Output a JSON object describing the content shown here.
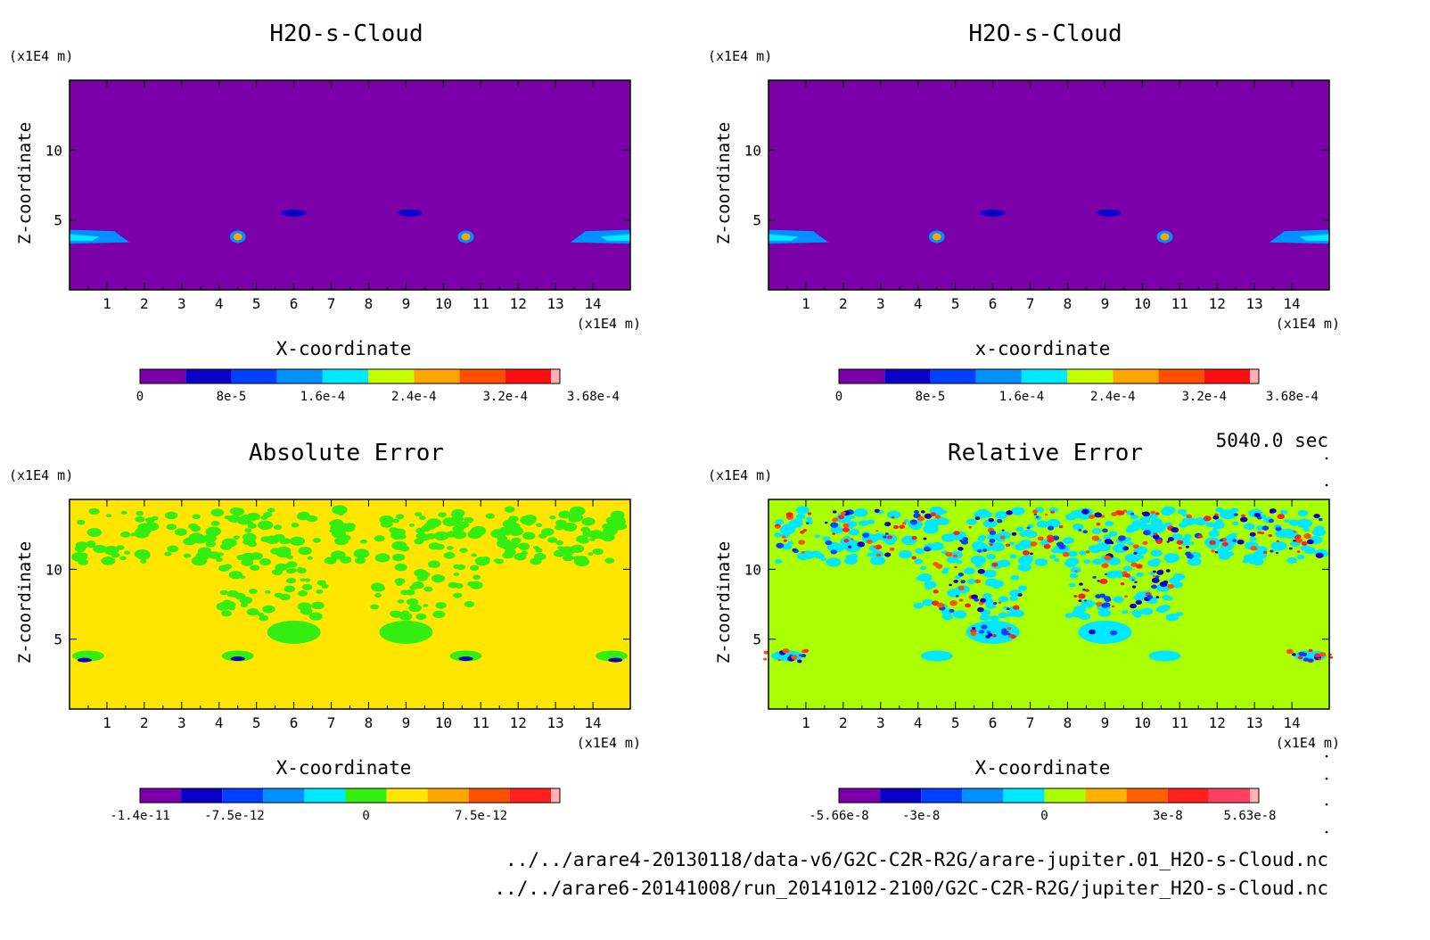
{
  "time_label": "5040.0 sec",
  "footer": {
    "line1": "../../arare4-20130118/data-v6/G2C-C2R-R2G/arare-jupiter.01_H2O-s-Cloud.nc",
    "line2": "../../arare6-20141008/run_20141012-2100/G2C-C2R-R2G/jupiter_H2O-s-Cloud.nc"
  },
  "chart_data": [
    {
      "type": "heatmap",
      "title": "H2O-s-Cloud",
      "xlabel": "X-coordinate",
      "ylabel": "Z-coordinate",
      "x_unit": "(x1E4 m)",
      "y_unit": "(x1E4 m)",
      "xlim": [
        0,
        15
      ],
      "ylim": [
        0,
        15
      ],
      "x_ticks": [
        "1",
        "2",
        "3",
        "4",
        "5",
        "6",
        "7",
        "8",
        "9",
        "10",
        "11",
        "12",
        "13",
        "14"
      ],
      "y_ticks": [
        "5",
        "10"
      ],
      "background": "#7b00aa",
      "colorbar": {
        "colors": [
          "#7b00aa",
          "#0a00c8",
          "#0040ff",
          "#0090ff",
          "#00e8ff",
          "#c8ff00",
          "#ffa500",
          "#ff5000",
          "#ff1010",
          "#ffb0b0"
        ],
        "labels": [
          "0",
          "8e-5",
          "1.6e-4",
          "2.4e-4",
          "3.2e-4",
          "3.68e-4"
        ]
      }
    },
    {
      "type": "heatmap",
      "title": "H2O-s-Cloud",
      "xlabel": "x-coordinate",
      "ylabel": "Z-coordinate",
      "x_unit": "(x1E4 m)",
      "y_unit": "(x1E4 m)",
      "xlim": [
        0,
        15
      ],
      "ylim": [
        0,
        15
      ],
      "x_ticks": [
        "1",
        "2",
        "3",
        "4",
        "5",
        "6",
        "7",
        "8",
        "9",
        "10",
        "11",
        "12",
        "13",
        "14"
      ],
      "y_ticks": [
        "5",
        "10"
      ],
      "background": "#7b00aa",
      "colorbar": {
        "colors": [
          "#7b00aa",
          "#0a00c8",
          "#0040ff",
          "#0090ff",
          "#00e8ff",
          "#c8ff00",
          "#ffa500",
          "#ff5000",
          "#ff1010",
          "#ffb0b0"
        ],
        "labels": [
          "0",
          "8e-5",
          "1.6e-4",
          "2.4e-4",
          "3.2e-4",
          "3.68e-4"
        ]
      }
    },
    {
      "type": "heatmap",
      "title": "Absolute Error",
      "xlabel": "X-coordinate",
      "ylabel": "Z-coordinate",
      "x_unit": "(x1E4 m)",
      "y_unit": "(x1E4 m)",
      "xlim": [
        0,
        15
      ],
      "ylim": [
        0,
        15
      ],
      "x_ticks": [
        "1",
        "2",
        "3",
        "4",
        "5",
        "6",
        "7",
        "8",
        "9",
        "10",
        "11",
        "12",
        "13",
        "14"
      ],
      "y_ticks": [
        "5",
        "10"
      ],
      "background": "#ffe500",
      "colorbar": {
        "colors": [
          "#7b00aa",
          "#0a00c8",
          "#0040ff",
          "#0090ff",
          "#00e8ff",
          "#33ee11",
          "#ffe500",
          "#ffa500",
          "#ff5000",
          "#ff2020",
          "#ffb0b0"
        ],
        "labels": [
          "-1.4e-11",
          "-7.5e-12",
          "0",
          "7.5e-12"
        ]
      }
    },
    {
      "type": "heatmap",
      "title": "Relative Error",
      "xlabel": "X-coordinate",
      "ylabel": "Z-coordinate",
      "x_unit": "(x1E4 m)",
      "y_unit": "(x1E4 m)",
      "xlim": [
        0,
        15
      ],
      "ylim": [
        0,
        15
      ],
      "x_ticks": [
        "1",
        "2",
        "3",
        "4",
        "5",
        "6",
        "7",
        "8",
        "9",
        "10",
        "11",
        "12",
        "13",
        "14"
      ],
      "y_ticks": [
        "5",
        "10"
      ],
      "background": "#aaff00",
      "colorbar": {
        "colors": [
          "#7b00aa",
          "#0a00c8",
          "#0040ff",
          "#0090ff",
          "#00e8ff",
          "#aaff00",
          "#ffb000",
          "#ff6000",
          "#ff2020",
          "#ff4060",
          "#ffb0b0"
        ],
        "labels": [
          "-5.66e-8",
          "-3e-8",
          "0",
          "3e-8",
          "5.63e-8"
        ]
      }
    }
  ]
}
